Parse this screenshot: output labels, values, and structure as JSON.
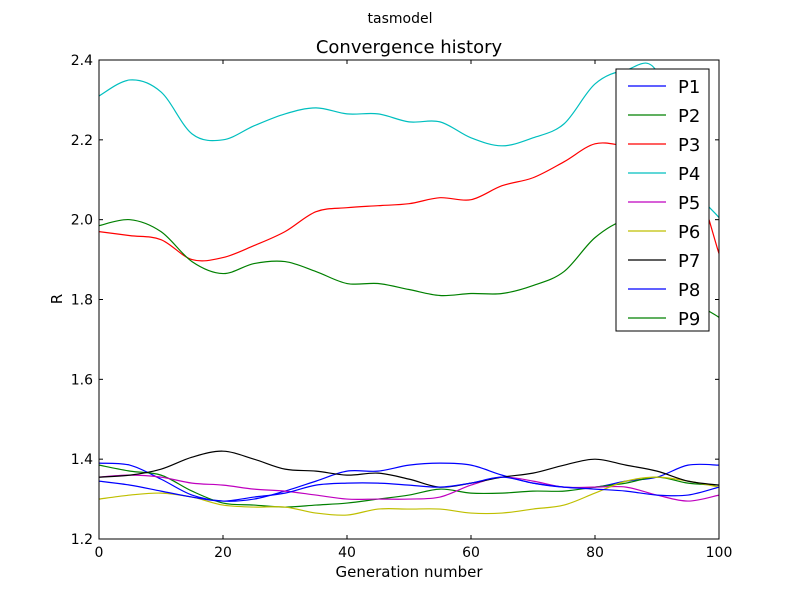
{
  "figure": {
    "suptitle": "tasmodel"
  },
  "chart_data": {
    "type": "line",
    "title": "Convergence history",
    "xlabel": "Generation number",
    "ylabel": "R",
    "xlim": [
      0,
      100
    ],
    "ylim": [
      1.2,
      2.4
    ],
    "x_ticks": [
      0,
      20,
      40,
      60,
      80,
      100
    ],
    "y_ticks": [
      1.2,
      1.4,
      1.6,
      1.8,
      2.0,
      2.2,
      2.4
    ],
    "x_tick_labels": [
      "0",
      "20",
      "40",
      "60",
      "80",
      "100"
    ],
    "y_tick_labels": [
      "1.2",
      "1.4",
      "1.6",
      "1.8",
      "2.0",
      "2.2",
      "2.4"
    ],
    "grid": false,
    "legend_position": "top-right",
    "x": [
      0,
      5,
      10,
      15,
      20,
      25,
      30,
      35,
      40,
      45,
      50,
      55,
      60,
      65,
      70,
      75,
      80,
      85,
      90,
      95,
      100
    ],
    "series": [
      {
        "name": "P1",
        "color": "#0000ff",
        "values": [
          1.39,
          1.385,
          1.35,
          1.31,
          1.295,
          1.3,
          1.32,
          1.345,
          1.37,
          1.37,
          1.385,
          1.39,
          1.385,
          1.36,
          1.34,
          1.33,
          1.33,
          1.345,
          1.355,
          1.385,
          1.385
        ]
      },
      {
        "name": "P2",
        "color": "#008000",
        "values": [
          1.385,
          1.37,
          1.36,
          1.32,
          1.29,
          1.285,
          1.28,
          1.285,
          1.29,
          1.3,
          1.31,
          1.325,
          1.315,
          1.315,
          1.32,
          1.32,
          1.33,
          1.34,
          1.355,
          1.34,
          1.335
        ]
      },
      {
        "name": "P3",
        "color": "#ff0000",
        "values": [
          1.97,
          1.96,
          1.95,
          1.9,
          1.905,
          1.935,
          1.97,
          2.02,
          2.03,
          2.035,
          2.04,
          2.055,
          2.05,
          2.085,
          2.105,
          2.145,
          2.19,
          2.185,
          2.18,
          2.15,
          1.915
        ]
      },
      {
        "name": "P4",
        "color": "#00bfbf",
        "values": [
          2.31,
          2.35,
          2.32,
          2.215,
          2.2,
          2.235,
          2.265,
          2.28,
          2.265,
          2.265,
          2.245,
          2.245,
          2.205,
          2.185,
          2.205,
          2.24,
          2.34,
          2.375,
          2.37,
          2.11,
          2.005
        ]
      },
      {
        "name": "P5",
        "color": "#bf00bf",
        "values": [
          1.355,
          1.36,
          1.355,
          1.34,
          1.335,
          1.325,
          1.32,
          1.31,
          1.3,
          1.3,
          1.3,
          1.305,
          1.335,
          1.355,
          1.345,
          1.33,
          1.33,
          1.33,
          1.31,
          1.295,
          1.31
        ]
      },
      {
        "name": "P6",
        "color": "#bfbf00",
        "values": [
          1.3,
          1.31,
          1.315,
          1.305,
          1.285,
          1.28,
          1.28,
          1.265,
          1.26,
          1.275,
          1.275,
          1.275,
          1.265,
          1.265,
          1.275,
          1.285,
          1.315,
          1.345,
          1.355,
          1.345,
          1.33
        ]
      },
      {
        "name": "P7",
        "color": "#000000",
        "values": [
          1.355,
          1.36,
          1.375,
          1.405,
          1.42,
          1.4,
          1.375,
          1.37,
          1.36,
          1.365,
          1.35,
          1.33,
          1.34,
          1.355,
          1.365,
          1.385,
          1.4,
          1.385,
          1.37,
          1.345,
          1.335
        ]
      },
      {
        "name": "P8",
        "color": "#0000ff",
        "values": [
          1.345,
          1.335,
          1.32,
          1.305,
          1.295,
          1.305,
          1.315,
          1.335,
          1.34,
          1.34,
          1.335,
          1.33,
          1.34,
          1.355,
          1.34,
          1.33,
          1.325,
          1.32,
          1.31,
          1.31,
          1.33
        ]
      },
      {
        "name": "P9",
        "color": "#008000",
        "values": [
          1.985,
          2.0,
          1.97,
          1.895,
          1.865,
          1.89,
          1.895,
          1.87,
          1.84,
          1.84,
          1.825,
          1.81,
          1.815,
          1.815,
          1.835,
          1.87,
          1.955,
          2.0,
          2.0,
          1.82,
          1.755
        ]
      }
    ]
  }
}
